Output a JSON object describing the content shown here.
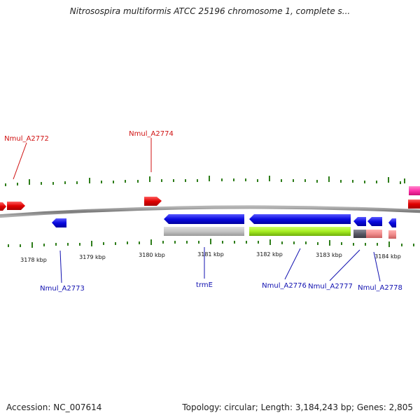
{
  "title": "Nitrosospira multiformis ATCC 25196 chromosome 1, complete s...",
  "accession": "Accession: NC_007614",
  "summary": "Topology: circular; Length: 3,184,243 bp; Genes: 2,805",
  "colors": {
    "backbone": "#8a8a8a",
    "tick": "#2e7d1a",
    "forward_gene": "#e01010",
    "reverse_gene": "#1515dd",
    "pink_feature": "#ff44aa",
    "grey_feature": "#bdbdbd",
    "green_feature": "#a8ee22",
    "dark_feature": "#5a5a66",
    "salmon_feature": "#f08c8c",
    "forward_label": "#d01010",
    "reverse_label": "#1010b0"
  },
  "axis": {
    "ticks": [
      "3178 kbp",
      "3179 kbp",
      "3180 kbp",
      "3181 kbp",
      "3182 kbp",
      "3183 kbp",
      "3184 kbp"
    ]
  },
  "gene_labels": [
    {
      "text": "Nmul_A2772",
      "strand": "forward"
    },
    {
      "text": "Nmul_A2774",
      "strand": "forward"
    },
    {
      "text": "Nmul_A2773",
      "strand": "reverse"
    },
    {
      "text": "trmE",
      "strand": "reverse"
    },
    {
      "text": "Nmul_A2776",
      "strand": "reverse"
    },
    {
      "text": "Nmul_A2777",
      "strand": "reverse"
    },
    {
      "text": "Nmul_A2778",
      "strand": "reverse"
    }
  ]
}
